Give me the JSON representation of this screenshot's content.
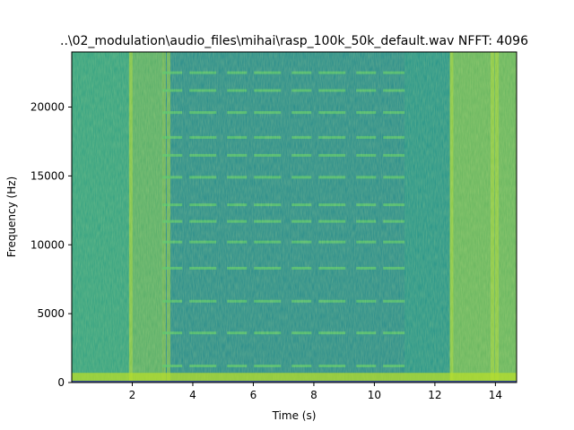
{
  "chart_data": {
    "type": "heatmap",
    "title": "..\\02_modulation\\audio_files\\mihai\\rasp_100k_50k_default.wav  NFFT: 4096",
    "xlabel": "Time (s)",
    "ylabel": "Frequency (Hz)",
    "xlim": [
      0,
      14.7
    ],
    "ylim": [
      0,
      24000
    ],
    "xticks": [
      2,
      4,
      6,
      8,
      10,
      12,
      14
    ],
    "yticks": [
      0,
      5000,
      10000,
      15000,
      20000
    ],
    "colormap": "viridis",
    "grid": false,
    "loud_segments_s": [
      [
        0,
        1.9
      ],
      [
        1.9,
        3.0
      ],
      [
        3.0,
        11.0
      ],
      [
        12.5,
        14.7
      ]
    ],
    "quiet_segment_s": [
      11.0,
      12.5
    ],
    "harmonic_lines_hz": [
      1200,
      3600,
      5900,
      8300,
      10200,
      11700,
      12900,
      14900,
      16500,
      17800,
      19600,
      21200,
      22500
    ],
    "low_freq_band_hz": [
      0,
      700
    ]
  },
  "colors": {
    "background_teal": "#23928b",
    "light_green": "#4fc16b",
    "yellow_green": "#b5de2b",
    "dark_band": "#2a7b8e",
    "bottom_line": "#3b528b"
  }
}
